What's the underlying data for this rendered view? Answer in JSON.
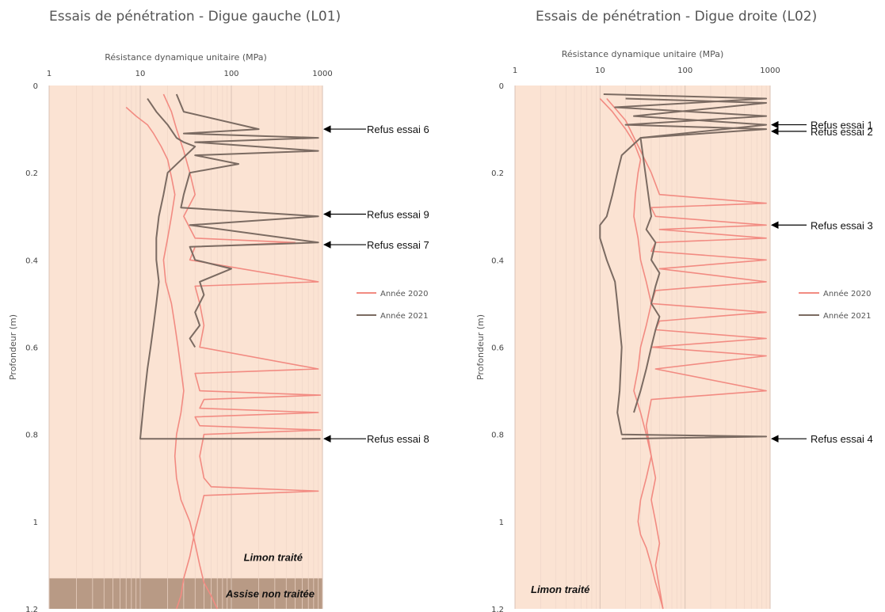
{
  "colors": {
    "plot_bg": "#fbe3d3",
    "sub_bg": "#b89a85",
    "series_2020": "#f28b82",
    "series_2021": "#7b6b62",
    "grid_major": "#d9c2b5",
    "grid_minor": "#efd6c8",
    "arrow": "#000000"
  },
  "chart_data": [
    {
      "type": "line",
      "title": "Essais de pénétration - Digue gauche (L01)",
      "xlabel": "Résistance dynamique unitaire (MPa)",
      "ylabel": "Profondeur (m)",
      "x_scale": "log",
      "xlim": [
        1,
        1000
      ],
      "ylim": [
        0,
        1.2
      ],
      "y_inverted": true,
      "x_tick_labels": [
        "1",
        "10",
        "100",
        "1000"
      ],
      "y_tick_labels": [
        "0",
        "0.2",
        "0.4",
        "0.6",
        "0.8",
        "1",
        "1.2"
      ],
      "grid": "vertical",
      "legend": "right",
      "legend_entries": [
        "Année 2020",
        "Année 2021"
      ],
      "series": [
        {
          "name": "Année 2020",
          "x": [
            7,
            9,
            12,
            14,
            17,
            20,
            22,
            24,
            22,
            20,
            18,
            19,
            22,
            24,
            26,
            28,
            30,
            28,
            25,
            24,
            25,
            28,
            35,
            40,
            45,
            50,
            60,
            70
          ],
          "y": [
            0.05,
            0.07,
            0.09,
            0.11,
            0.14,
            0.17,
            0.21,
            0.25,
            0.3,
            0.35,
            0.4,
            0.45,
            0.5,
            0.55,
            0.6,
            0.65,
            0.7,
            0.75,
            0.8,
            0.85,
            0.9,
            0.95,
            1.0,
            1.05,
            1.1,
            1.14,
            1.17,
            1.2
          ]
        },
        {
          "name": "Année 2020",
          "x": [
            18,
            22,
            25,
            30,
            35,
            40,
            30,
            40,
            500,
            40,
            35,
            900,
            40,
            45,
            50,
            45,
            900,
            40,
            45,
            950,
            50,
            45,
            900,
            40,
            45,
            950,
            50,
            45,
            50,
            60,
            900,
            50,
            45,
            40,
            35,
            30,
            28,
            25
          ],
          "y": [
            0.02,
            0.06,
            0.1,
            0.15,
            0.2,
            0.25,
            0.3,
            0.35,
            0.36,
            0.37,
            0.4,
            0.45,
            0.46,
            0.5,
            0.55,
            0.6,
            0.65,
            0.66,
            0.7,
            0.71,
            0.72,
            0.74,
            0.75,
            0.76,
            0.78,
            0.79,
            0.8,
            0.85,
            0.9,
            0.92,
            0.93,
            0.94,
            0.98,
            1.02,
            1.08,
            1.13,
            1.17,
            1.2
          ]
        },
        {
          "name": "Année 2021",
          "x": [
            12,
            15,
            20,
            25,
            30,
            40,
            20,
            18,
            16,
            15,
            15,
            16,
            15,
            14,
            13,
            12,
            11,
            10,
            950
          ],
          "y": [
            0.03,
            0.06,
            0.09,
            0.12,
            0.13,
            0.14,
            0.2,
            0.25,
            0.3,
            0.35,
            0.4,
            0.45,
            0.5,
            0.55,
            0.6,
            0.65,
            0.72,
            0.81,
            0.81
          ]
        },
        {
          "name": "Année 2021",
          "x": [
            25,
            30,
            200,
            30,
            900,
            40,
            900,
            40,
            120,
            35,
            30,
            28,
            900,
            35,
            900,
            35,
            40,
            100,
            45,
            50,
            40,
            45,
            35,
            40
          ],
          "y": [
            0.02,
            0.06,
            0.1,
            0.11,
            0.12,
            0.13,
            0.15,
            0.16,
            0.18,
            0.2,
            0.25,
            0.28,
            0.3,
            0.32,
            0.36,
            0.37,
            0.4,
            0.42,
            0.45,
            0.48,
            0.52,
            0.55,
            0.58,
            0.6
          ]
        }
      ],
      "annotations": [
        {
          "text": "Refus essai 6",
          "x": 1000,
          "y": 0.1
        },
        {
          "text": "Refus essai 9",
          "x": 1000,
          "y": 0.295
        },
        {
          "text": "Refus essai 7",
          "x": 1000,
          "y": 0.365
        },
        {
          "text": "Refus essai 8",
          "x": 1000,
          "y": 0.81
        }
      ],
      "zones": [
        {
          "text": "Limon traité",
          "y_from": 0,
          "y_to": 1.13
        },
        {
          "text": "Assise non traitée",
          "y_from": 1.13,
          "y_to": 1.2
        }
      ]
    },
    {
      "type": "line",
      "title": "Essais de pénétration - Digue droite (L02)",
      "xlabel": "Résistance dynamique unitaire (MPa)",
      "ylabel": "Profondeur (m)",
      "x_scale": "log",
      "xlim": [
        1,
        1000
      ],
      "ylim": [
        0,
        1.2
      ],
      "y_inverted": true,
      "x_tick_labels": [
        "1",
        "10",
        "100",
        "1000"
      ],
      "y_tick_labels": [
        "0",
        "0.2",
        "0.4",
        "0.6",
        "0.8",
        "1",
        "1.2"
      ],
      "grid": "vertical",
      "legend": "right",
      "legend_entries": [
        "Année 2020",
        "Année 2021"
      ],
      "series": [
        {
          "name": "Année 2020",
          "x": [
            10,
            14,
            20,
            25,
            30,
            28,
            26,
            25,
            28,
            30,
            35,
            40,
            35,
            30,
            28,
            25,
            30,
            35,
            40,
            35,
            30,
            28,
            30,
            35,
            40,
            45,
            50,
            55
          ],
          "y": [
            0.03,
            0.06,
            0.1,
            0.13,
            0.17,
            0.2,
            0.25,
            0.3,
            0.35,
            0.4,
            0.45,
            0.5,
            0.55,
            0.6,
            0.65,
            0.7,
            0.75,
            0.8,
            0.85,
            0.9,
            0.95,
            1.0,
            1.03,
            1.06,
            1.1,
            1.14,
            1.17,
            1.2
          ]
        },
        {
          "name": "Année 2020",
          "x": [
            12,
            20,
            30,
            40,
            50,
            900,
            40,
            45,
            900,
            50,
            900,
            45,
            40,
            900,
            50,
            900,
            45,
            40,
            900,
            50,
            45,
            900,
            40,
            900,
            45,
            900,
            40,
            35,
            40,
            45,
            40,
            45,
            50,
            45,
            55
          ],
          "y": [
            0.03,
            0.08,
            0.15,
            0.2,
            0.25,
            0.27,
            0.28,
            0.3,
            0.32,
            0.33,
            0.35,
            0.36,
            0.38,
            0.4,
            0.42,
            0.45,
            0.47,
            0.5,
            0.52,
            0.54,
            0.56,
            0.58,
            0.6,
            0.62,
            0.65,
            0.7,
            0.72,
            0.78,
            0.85,
            0.9,
            0.95,
            1.0,
            1.05,
            1.1,
            1.2
          ]
        },
        {
          "name": "Année 2021",
          "x": [
            11,
            900,
            15,
            900,
            20,
            900,
            30,
            18,
            16,
            14,
            12,
            10,
            10,
            12,
            15,
            16,
            18,
            17,
            16,
            18,
            900,
            18
          ],
          "y": [
            0.02,
            0.03,
            0.05,
            0.07,
            0.09,
            0.1,
            0.12,
            0.16,
            0.2,
            0.25,
            0.3,
            0.32,
            0.35,
            0.4,
            0.45,
            0.5,
            0.6,
            0.7,
            0.75,
            0.8,
            0.805,
            0.81
          ]
        },
        {
          "name": "Année 2021",
          "x": [
            20,
            900,
            25,
            900,
            30,
            40,
            35,
            45,
            40,
            50,
            45,
            40,
            50,
            45,
            40,
            35,
            30,
            25
          ],
          "y": [
            0.03,
            0.04,
            0.07,
            0.09,
            0.12,
            0.3,
            0.33,
            0.36,
            0.4,
            0.43,
            0.46,
            0.5,
            0.53,
            0.56,
            0.6,
            0.65,
            0.7,
            0.75
          ]
        }
      ],
      "annotations": [
        {
          "text": "Refus essai 1",
          "x": 1000,
          "y": 0.09
        },
        {
          "text": "Refus essai 2",
          "x": 1000,
          "y": 0.105
        },
        {
          "text": "Refus essai 3",
          "x": 1000,
          "y": 0.32
        },
        {
          "text": "Refus essai 4",
          "x": 1000,
          "y": 0.81
        }
      ],
      "zones": [
        {
          "text": "Limon traité",
          "y_from": 0,
          "y_to": 1.2
        }
      ]
    }
  ]
}
